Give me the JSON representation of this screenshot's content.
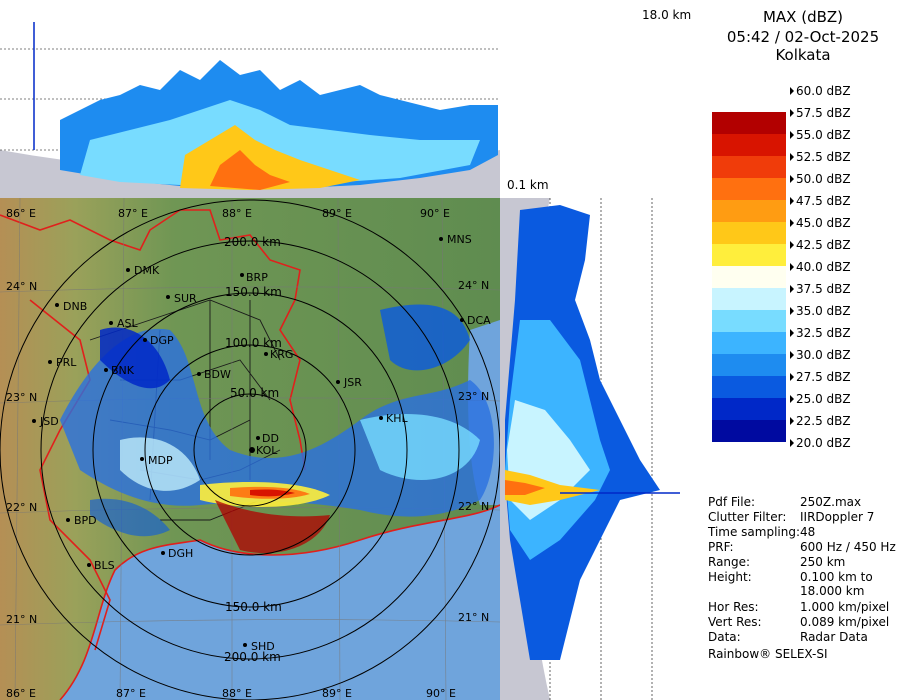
{
  "product": {
    "title": "MAX (dBZ)",
    "datetime": "05:42 / 02-Oct-2025",
    "station": "Kolkata"
  },
  "height_scale": {
    "top": "18.0 km",
    "bottom": "0.1 km"
  },
  "legend": {
    "unit": "dBZ",
    "levels": [
      {
        "label": "60.0 dBZ",
        "color": "#ffffff"
      },
      {
        "label": "57.5 dBZ",
        "color": "#ffffff"
      },
      {
        "label": "55.0 dBZ",
        "color": "#b20000"
      },
      {
        "label": "52.5 dBZ",
        "color": "#d81400"
      },
      {
        "label": "50.0 dBZ",
        "color": "#f03c0a"
      },
      {
        "label": "47.5 dBZ",
        "color": "#ff7010"
      },
      {
        "label": "45.0 dBZ",
        "color": "#ff9c12"
      },
      {
        "label": "42.5 dBZ",
        "color": "#ffc818"
      },
      {
        "label": "40.0 dBZ",
        "color": "#ffee3c"
      },
      {
        "label": "37.5 dBZ",
        "color": "#fffff0"
      },
      {
        "label": "35.0 dBZ",
        "color": "#c8f4ff"
      },
      {
        "label": "32.5 dBZ",
        "color": "#78dcff"
      },
      {
        "label": "30.0 dBZ",
        "color": "#3cb4ff"
      },
      {
        "label": "27.5 dBZ",
        "color": "#1e8cf0"
      },
      {
        "label": "25.0 dBZ",
        "color": "#0a5ae0"
      },
      {
        "label": "22.5 dBZ",
        "color": "#0028c8"
      },
      {
        "label": "20.0 dBZ",
        "color": "#000aa0"
      }
    ]
  },
  "info": [
    {
      "key": "Pdf File:",
      "value": "250Z.max"
    },
    {
      "key": "Clutter Filter:",
      "value": "IIRDoppler 7"
    },
    {
      "key": "Time sampling:",
      "value": "48"
    },
    {
      "key": "PRF:",
      "value": "600 Hz / 450 Hz"
    },
    {
      "key": "Range:",
      "value": "250 km"
    },
    {
      "key": "Height:",
      "value": "0.100 km to\n18.000 km"
    },
    {
      "key": "Hor Res:",
      "value": "1.000 km/pixel"
    },
    {
      "key": "Vert Res:",
      "value": "0.089 km/pixel"
    },
    {
      "key": "Data:",
      "value": "Radar Data"
    }
  ],
  "credit": "Rainbow® SELEX-SI",
  "map": {
    "longitudes": [
      "86° E",
      "87° E",
      "88° E",
      "89° E",
      "90° E"
    ],
    "latitudes": [
      "24° N",
      "23° N",
      "22° N",
      "21° N"
    ],
    "range_rings": [
      "50.0 km",
      "100.0 km",
      "150.0 km",
      "200.0 km"
    ],
    "stations": [
      "MNS",
      "DMK",
      "BRP",
      "SUR",
      "DNB",
      "ASL",
      "DCA",
      "DGP",
      "KRG",
      "PRL",
      "BNK",
      "BDW",
      "JSR",
      "JSD",
      "KHL",
      "DD",
      "KOL",
      "MDP",
      "BPD",
      "DGH",
      "BLS",
      "SHD"
    ]
  },
  "colors": {
    "land": "#5f8f52",
    "land_west": "#9c9a5a",
    "sea": "#6fa4dc",
    "panel_bg": "#c7c7d2",
    "border_red": "#e0201c",
    "district": "#1a1a1a"
  }
}
